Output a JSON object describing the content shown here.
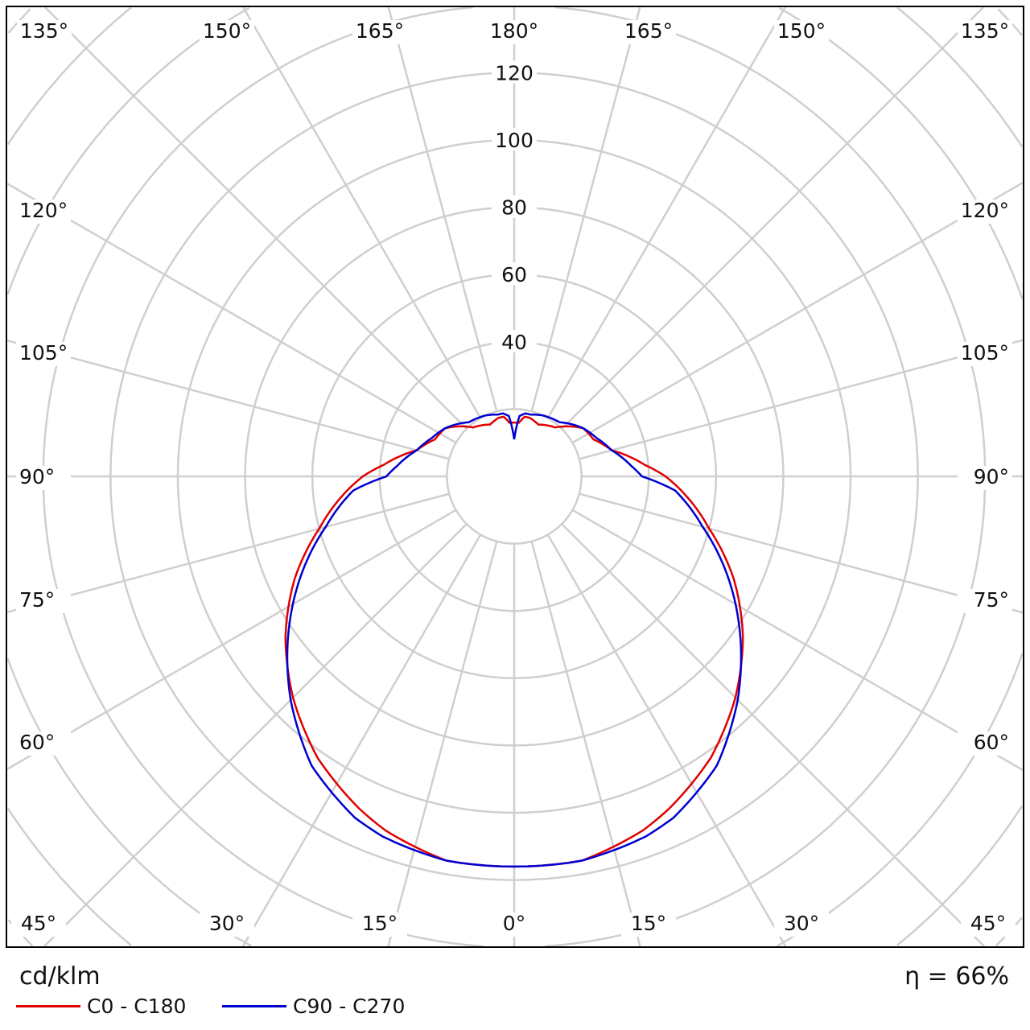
{
  "chart_data": {
    "type": "polar-line",
    "unit_label": "cd/klm",
    "efficiency_label": "η = 66%",
    "radial_ticks": [
      40,
      60,
      80,
      100,
      120
    ],
    "radial_rings": [
      20,
      40,
      60,
      80,
      100,
      120,
      140,
      160,
      180,
      200
    ],
    "angle_labels": {
      "top": [
        "135°",
        "150°",
        "165°",
        "180°",
        "165°",
        "150°",
        "135°"
      ],
      "bottom": [
        "45°",
        "30°",
        "15°",
        "0°",
        "15°",
        "30°",
        "45°"
      ],
      "left": [
        "120°",
        "105°",
        "90°",
        "75°",
        "60°"
      ],
      "right": [
        "120°",
        "105°",
        "90°",
        "75°",
        "60°"
      ]
    },
    "angles": [
      0,
      10,
      20,
      25,
      35,
      45,
      55,
      65,
      75,
      85,
      90,
      95,
      105,
      115,
      125,
      140,
      155,
      165,
      170,
      175,
      180
    ],
    "series": [
      {
        "name": "C0 - C180",
        "color": "#e00000",
        "values": [
          116,
          116,
          112,
          109,
          102,
          93,
          83,
          72,
          60,
          50,
          45,
          39,
          30,
          26,
          25,
          19,
          17,
          18,
          18,
          16,
          16
        ]
      },
      {
        "name": "C90 - C270",
        "color": "#0000d0",
        "values": [
          116,
          116,
          114,
          112,
          105,
          94,
          82,
          70,
          58,
          48,
          38,
          35,
          30,
          27,
          25,
          21,
          20,
          19,
          19,
          18,
          11
        ]
      }
    ]
  }
}
